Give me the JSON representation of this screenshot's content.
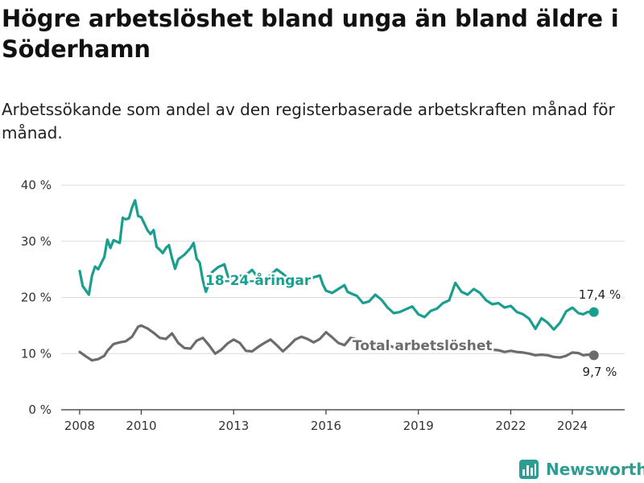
{
  "title": "Högre arbetslöshet bland unga än bland äldre i Söderhamn",
  "subtitle": "Arbetssökande som andel av den registerbaserade arbetskraften månad för månad.",
  "brand": {
    "name": "Newsworthy",
    "color": "#2d9c92"
  },
  "chart_data": {
    "type": "line",
    "x_unit": "year",
    "xlim": [
      2007.4,
      2025.7
    ],
    "ylim": [
      0,
      40
    ],
    "y_ticks": [
      0,
      10,
      20,
      30,
      40
    ],
    "y_tick_labels": [
      "0 %",
      "10 %",
      "20 %",
      "30 %",
      "40 %"
    ],
    "x_ticks": [
      2008,
      2010,
      2013,
      2016,
      2019,
      2022,
      2024
    ],
    "x_tick_labels": [
      "2008",
      "2010",
      "2013",
      "2016",
      "2019",
      "2022",
      "2024"
    ],
    "grid": true,
    "legend": "inline labels",
    "series": [
      {
        "name": "18-24-åringar",
        "color": "#1a9e8f",
        "end_label": "17,4 %",
        "points": [
          [
            2008.0,
            24.7
          ],
          [
            2008.1,
            22.0
          ],
          [
            2008.3,
            20.5
          ],
          [
            2008.4,
            23.9
          ],
          [
            2008.5,
            25.5
          ],
          [
            2008.6,
            25.0
          ],
          [
            2008.8,
            27.2
          ],
          [
            2008.9,
            30.3
          ],
          [
            2009.0,
            28.8
          ],
          [
            2009.1,
            30.2
          ],
          [
            2009.3,
            29.7
          ],
          [
            2009.4,
            34.2
          ],
          [
            2009.5,
            33.9
          ],
          [
            2009.6,
            34.1
          ],
          [
            2009.7,
            36.0
          ],
          [
            2009.8,
            37.3
          ],
          [
            2009.9,
            34.5
          ],
          [
            2010.0,
            34.3
          ],
          [
            2010.2,
            32.0
          ],
          [
            2010.3,
            31.3
          ],
          [
            2010.4,
            32.0
          ],
          [
            2010.5,
            29.0
          ],
          [
            2010.6,
            28.5
          ],
          [
            2010.7,
            27.9
          ],
          [
            2010.8,
            28.8
          ],
          [
            2010.9,
            29.3
          ],
          [
            2011.0,
            27.0
          ],
          [
            2011.1,
            25.1
          ],
          [
            2011.2,
            26.8
          ],
          [
            2011.4,
            27.6
          ],
          [
            2011.6,
            28.8
          ],
          [
            2011.7,
            29.7
          ],
          [
            2011.8,
            26.9
          ],
          [
            2011.9,
            26.2
          ],
          [
            2012.0,
            23.0
          ],
          [
            2012.1,
            21.0
          ],
          [
            2012.2,
            22.5
          ],
          [
            2012.3,
            24.5
          ],
          [
            2012.5,
            25.4
          ],
          [
            2012.7,
            25.9
          ],
          [
            2012.8,
            24.0
          ],
          [
            2012.9,
            22.8
          ],
          [
            2013.0,
            23.3
          ],
          [
            2013.2,
            23.8
          ],
          [
            2013.4,
            24.0
          ],
          [
            2013.6,
            24.9
          ],
          [
            2013.8,
            23.5
          ],
          [
            2014.0,
            23.1
          ],
          [
            2014.2,
            24.0
          ],
          [
            2014.4,
            25.0
          ],
          [
            2014.6,
            24.2
          ],
          [
            2014.8,
            23.3
          ],
          [
            2015.0,
            22.8
          ],
          [
            2015.2,
            22.3
          ],
          [
            2015.4,
            22.7
          ],
          [
            2015.6,
            23.6
          ],
          [
            2015.8,
            23.9
          ],
          [
            2015.9,
            22.3
          ],
          [
            2016.0,
            21.2
          ],
          [
            2016.2,
            20.8
          ],
          [
            2016.4,
            21.5
          ],
          [
            2016.6,
            22.2
          ],
          [
            2016.7,
            21.0
          ],
          [
            2016.9,
            20.5
          ],
          [
            2017.0,
            20.3
          ],
          [
            2017.2,
            19.0
          ],
          [
            2017.4,
            19.3
          ],
          [
            2017.6,
            20.5
          ],
          [
            2017.8,
            19.6
          ],
          [
            2018.0,
            18.2
          ],
          [
            2018.2,
            17.2
          ],
          [
            2018.4,
            17.4
          ],
          [
            2018.6,
            17.9
          ],
          [
            2018.8,
            18.4
          ],
          [
            2019.0,
            17.0
          ],
          [
            2019.2,
            16.5
          ],
          [
            2019.4,
            17.6
          ],
          [
            2019.6,
            18.0
          ],
          [
            2019.8,
            19.0
          ],
          [
            2020.0,
            19.5
          ],
          [
            2020.2,
            22.6
          ],
          [
            2020.4,
            21.0
          ],
          [
            2020.6,
            20.5
          ],
          [
            2020.8,
            21.5
          ],
          [
            2021.0,
            20.8
          ],
          [
            2021.2,
            19.5
          ],
          [
            2021.4,
            18.8
          ],
          [
            2021.6,
            19.0
          ],
          [
            2021.8,
            18.2
          ],
          [
            2022.0,
            18.5
          ],
          [
            2022.2,
            17.4
          ],
          [
            2022.4,
            17.0
          ],
          [
            2022.6,
            16.2
          ],
          [
            2022.8,
            14.4
          ],
          [
            2023.0,
            16.3
          ],
          [
            2023.2,
            15.5
          ],
          [
            2023.4,
            14.3
          ],
          [
            2023.6,
            15.5
          ],
          [
            2023.8,
            17.5
          ],
          [
            2024.0,
            18.2
          ],
          [
            2024.2,
            17.2
          ],
          [
            2024.35,
            17.0
          ],
          [
            2024.5,
            17.4
          ],
          [
            2024.7,
            17.4
          ]
        ]
      },
      {
        "name": "Total arbetslöshet",
        "color": "#6c6c6f",
        "end_label": "9,7 %",
        "points": [
          [
            2008.0,
            10.3
          ],
          [
            2008.2,
            9.5
          ],
          [
            2008.4,
            8.8
          ],
          [
            2008.6,
            9.0
          ],
          [
            2008.8,
            9.6
          ],
          [
            2008.9,
            10.5
          ],
          [
            2009.1,
            11.7
          ],
          [
            2009.3,
            12.0
          ],
          [
            2009.5,
            12.2
          ],
          [
            2009.7,
            13.0
          ],
          [
            2009.9,
            14.8
          ],
          [
            2010.0,
            15.0
          ],
          [
            2010.2,
            14.5
          ],
          [
            2010.4,
            13.7
          ],
          [
            2010.6,
            12.8
          ],
          [
            2010.8,
            12.6
          ],
          [
            2011.0,
            13.6
          ],
          [
            2011.2,
            11.9
          ],
          [
            2011.4,
            11.0
          ],
          [
            2011.6,
            10.9
          ],
          [
            2011.8,
            12.3
          ],
          [
            2012.0,
            12.8
          ],
          [
            2012.2,
            11.5
          ],
          [
            2012.4,
            10.0
          ],
          [
            2012.6,
            10.7
          ],
          [
            2012.8,
            11.8
          ],
          [
            2013.0,
            12.5
          ],
          [
            2013.2,
            11.9
          ],
          [
            2013.4,
            10.5
          ],
          [
            2013.6,
            10.4
          ],
          [
            2013.8,
            11.2
          ],
          [
            2014.0,
            11.9
          ],
          [
            2014.2,
            12.5
          ],
          [
            2014.4,
            11.5
          ],
          [
            2014.6,
            10.4
          ],
          [
            2014.8,
            11.4
          ],
          [
            2015.0,
            12.5
          ],
          [
            2015.2,
            13.0
          ],
          [
            2015.4,
            12.6
          ],
          [
            2015.6,
            12.0
          ],
          [
            2015.8,
            12.6
          ],
          [
            2016.0,
            13.8
          ],
          [
            2016.2,
            12.9
          ],
          [
            2016.4,
            11.9
          ],
          [
            2016.6,
            11.5
          ],
          [
            2016.8,
            12.8
          ],
          [
            2017.0,
            12.5
          ],
          [
            2017.2,
            11.6
          ],
          [
            2017.4,
            11.0
          ],
          [
            2017.6,
            11.3
          ],
          [
            2017.8,
            11.8
          ],
          [
            2018.0,
            11.6
          ],
          [
            2018.2,
            11.1
          ],
          [
            2018.4,
            11.4
          ],
          [
            2018.6,
            11.6
          ],
          [
            2018.8,
            11.2
          ],
          [
            2019.0,
            10.9
          ],
          [
            2019.2,
            11.3
          ],
          [
            2019.4,
            11.2
          ],
          [
            2019.6,
            11.5
          ],
          [
            2019.8,
            11.2
          ],
          [
            2020.0,
            11.0
          ],
          [
            2020.2,
            11.3
          ],
          [
            2020.4,
            11.1
          ],
          [
            2020.6,
            11.0
          ],
          [
            2020.8,
            11.2
          ],
          [
            2021.0,
            11.0
          ],
          [
            2021.2,
            10.8
          ],
          [
            2021.4,
            10.7
          ],
          [
            2021.6,
            10.6
          ],
          [
            2021.8,
            10.3
          ],
          [
            2022.0,
            10.5
          ],
          [
            2022.2,
            10.3
          ],
          [
            2022.4,
            10.2
          ],
          [
            2022.6,
            10.0
          ],
          [
            2022.8,
            9.7
          ],
          [
            2023.0,
            9.8
          ],
          [
            2023.2,
            9.7
          ],
          [
            2023.4,
            9.4
          ],
          [
            2023.6,
            9.3
          ],
          [
            2023.8,
            9.6
          ],
          [
            2024.0,
            10.2
          ],
          [
            2024.2,
            10.1
          ],
          [
            2024.35,
            9.7
          ],
          [
            2024.5,
            9.8
          ],
          [
            2024.7,
            9.7
          ]
        ]
      }
    ]
  }
}
